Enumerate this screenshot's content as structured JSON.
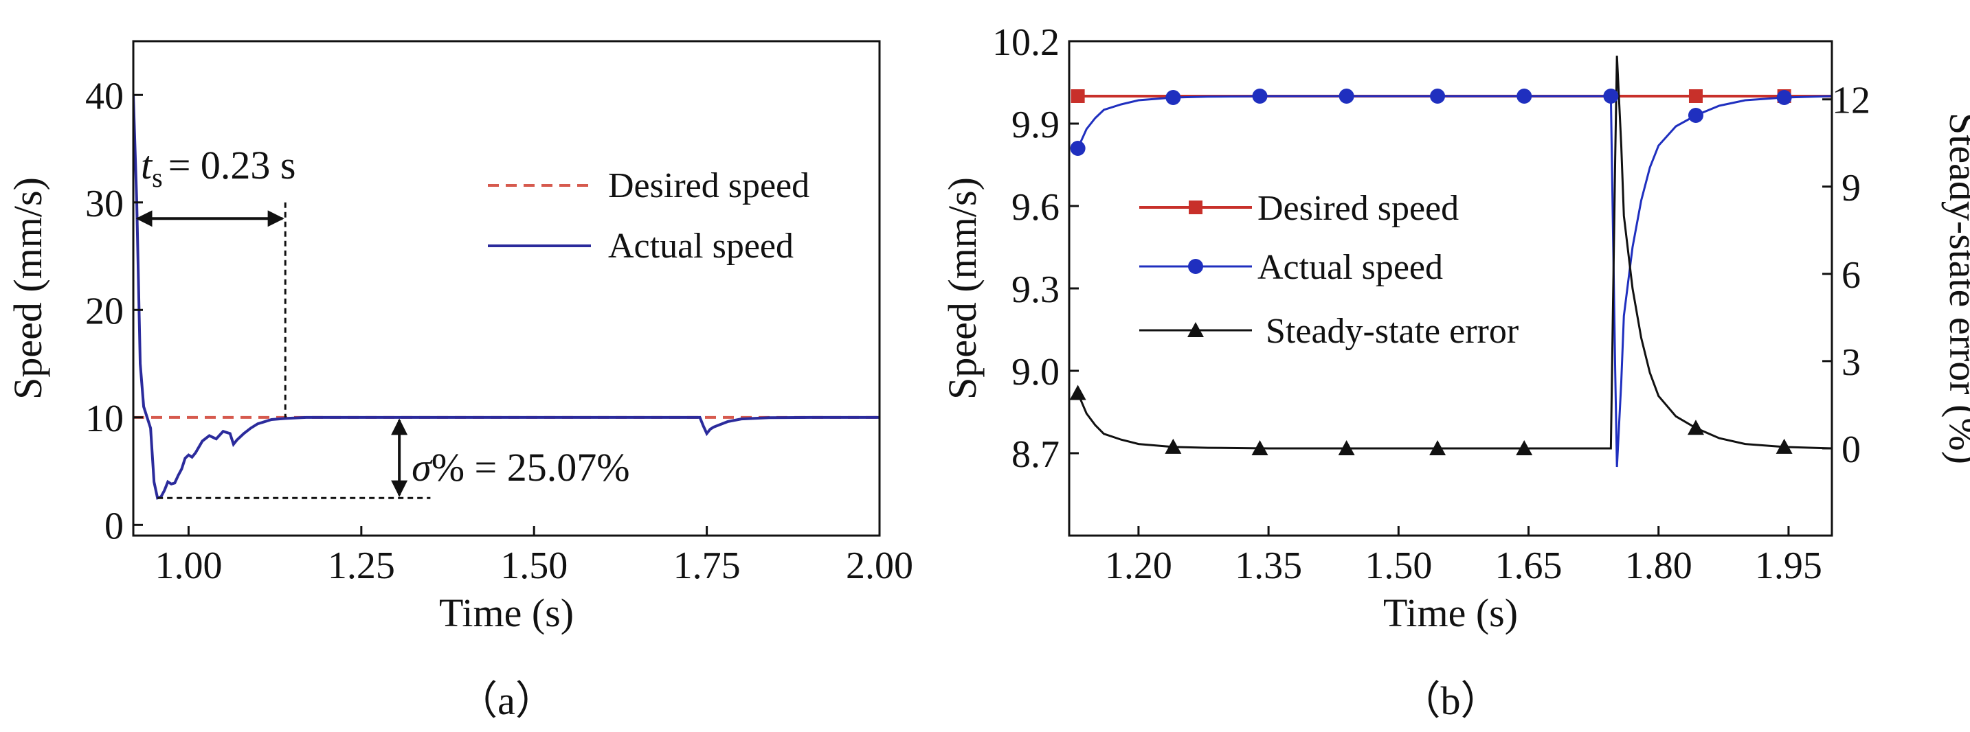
{
  "chart_data": [
    {
      "id": "a",
      "type": "line",
      "panel_label": "（a）",
      "xlabel": "Time (s)",
      "ylabel": "Speed (mm/s)",
      "xlim": [
        0.92,
        2.0
      ],
      "ylim": [
        -1,
        45
      ],
      "xticks": [
        1.0,
        1.25,
        1.5,
        1.75,
        2.0
      ],
      "xtick_labels": [
        "1.00",
        "1.25",
        "1.50",
        "1.75",
        "2.00"
      ],
      "yticks": [
        0,
        10,
        20,
        30,
        40
      ],
      "ytick_labels": [
        "0",
        "10",
        "20",
        "30",
        "40"
      ],
      "legend": [
        "Desired speed",
        "Actual speed"
      ],
      "series": [
        {
          "name": "Desired speed",
          "color": "#d65a4e",
          "style": "dashed",
          "x": [
            0.92,
            2.0
          ],
          "y": [
            10,
            10
          ]
        },
        {
          "name": "Actual speed",
          "color": "#2b2b9c",
          "style": "solid",
          "x": [
            0.92,
            0.925,
            0.93,
            0.935,
            0.94,
            0.945,
            0.95,
            0.955,
            0.96,
            0.965,
            0.97,
            0.975,
            0.98,
            0.985,
            0.99,
            0.995,
            1.0,
            1.005,
            1.01,
            1.02,
            1.03,
            1.04,
            1.05,
            1.06,
            1.065,
            1.07,
            1.08,
            1.09,
            1.1,
            1.12,
            1.14,
            1.17,
            1.2,
            1.25,
            1.3,
            1.5,
            1.74,
            1.745,
            1.75,
            1.755,
            1.76,
            1.78,
            1.8,
            1.84,
            1.9,
            2.0
          ],
          "y": [
            40,
            30,
            15,
            11,
            10,
            9,
            4,
            2.5,
            2.6,
            3.2,
            4,
            3.8,
            3.9,
            4.6,
            5.2,
            6.2,
            6.5,
            6.3,
            6.7,
            7.8,
            8.3,
            8.0,
            8.7,
            8.5,
            7.5,
            7.9,
            8.5,
            9.0,
            9.4,
            9.8,
            9.9,
            10,
            10,
            10,
            10,
            10,
            10,
            9.2,
            8.5,
            8.9,
            9.1,
            9.6,
            9.85,
            9.97,
            10,
            10
          ]
        }
      ],
      "annotations": {
        "settling_label": "= 0.23 s",
        "settling_symbol": "t",
        "settling_sub": "s",
        "settling_time": 0.23,
        "settling_span": [
          0.92,
          1.14
        ],
        "settling_level": 28.5,
        "overshoot_label": "% = 25.07%",
        "overshoot_symbol": "σ",
        "overshoot_value": 25.07,
        "overshoot_levels": [
          2.5,
          10
        ],
        "overshoot_x": 1.305
      }
    },
    {
      "id": "b",
      "type": "line",
      "panel_label": "（b）",
      "xlabel": "Time (s)",
      "ylabel": "Speed (mm/s)",
      "y2label": "Steady-state error (%)",
      "xlim": [
        1.12,
        2.0
      ],
      "ylim": [
        8.4,
        10.2
      ],
      "y2lim": [
        -3,
        14
      ],
      "xticks": [
        1.2,
        1.35,
        1.5,
        1.65,
        1.8,
        1.95
      ],
      "xtick_labels": [
        "1.20",
        "1.35",
        "1.50",
        "1.65",
        "1.80",
        "1.95"
      ],
      "yticks": [
        8.7,
        9.0,
        9.3,
        9.6,
        9.9,
        10.2
      ],
      "ytick_labels": [
        "8.7",
        "9.0",
        "9.3",
        "9.6",
        "9.9",
        "10.2"
      ],
      "y2ticks": [
        0,
        3,
        6,
        9,
        12
      ],
      "y2tick_labels": [
        "0",
        "3",
        "6",
        "9",
        "12"
      ],
      "legend": [
        "Desired speed",
        "Actual speed",
        "Steady-state error"
      ],
      "series": [
        {
          "name": "Desired speed",
          "axis": "left",
          "color": "#c8302a",
          "marker": "square",
          "x": [
            1.13,
            2.0
          ],
          "y": [
            10.0,
            10.0
          ],
          "markers_x": [
            1.13,
            1.843,
            1.945
          ],
          "markers_y": [
            10.0,
            10.0,
            10.0
          ]
        },
        {
          "name": "Actual speed",
          "axis": "left",
          "color": "#1f2fbf",
          "marker": "circle",
          "x": [
            1.13,
            1.14,
            1.15,
            1.16,
            1.18,
            1.2,
            1.22,
            1.24,
            1.28,
            1.35,
            1.5,
            1.65,
            1.745,
            1.75,
            1.752,
            1.757,
            1.76,
            1.77,
            1.78,
            1.79,
            1.8,
            1.82,
            1.843,
            1.87,
            1.9,
            1.945,
            2.0
          ],
          "y": [
            9.81,
            9.88,
            9.92,
            9.95,
            9.97,
            9.985,
            9.99,
            9.995,
            9.998,
            10.0,
            10.0,
            10.0,
            10.0,
            9.0,
            8.65,
            8.96,
            9.2,
            9.45,
            9.62,
            9.74,
            9.82,
            9.89,
            9.93,
            9.965,
            9.985,
            9.995,
            10.0
          ],
          "markers_x": [
            1.13,
            1.24,
            1.34,
            1.44,
            1.545,
            1.645,
            1.745,
            1.843,
            1.945
          ],
          "markers_y": [
            9.81,
            9.995,
            10.0,
            10.0,
            10.0,
            10.0,
            10.0,
            9.93,
            9.995
          ]
        },
        {
          "name": "Steady-state error",
          "axis": "right",
          "color": "#111111",
          "marker": "triangle",
          "x": [
            1.13,
            1.14,
            1.15,
            1.16,
            1.18,
            1.2,
            1.22,
            1.24,
            1.28,
            1.35,
            1.5,
            1.65,
            1.745,
            1.75,
            1.752,
            1.757,
            1.76,
            1.77,
            1.78,
            1.79,
            1.8,
            1.82,
            1.843,
            1.87,
            1.9,
            1.945,
            2.0
          ],
          "y": [
            1.9,
            1.2,
            0.8,
            0.5,
            0.3,
            0.15,
            0.1,
            0.05,
            0.02,
            0.0,
            0.0,
            0.0,
            0.0,
            10.0,
            13.5,
            10.4,
            8.0,
            5.5,
            3.8,
            2.6,
            1.8,
            1.1,
            0.7,
            0.35,
            0.15,
            0.05,
            0.0
          ],
          "markers_x": [
            1.13,
            1.24,
            1.34,
            1.44,
            1.545,
            1.645,
            1.843,
            1.945
          ],
          "markers_y": [
            1.9,
            0.05,
            0.0,
            0.0,
            0.0,
            0.0,
            0.7,
            0.05
          ]
        }
      ]
    }
  ]
}
